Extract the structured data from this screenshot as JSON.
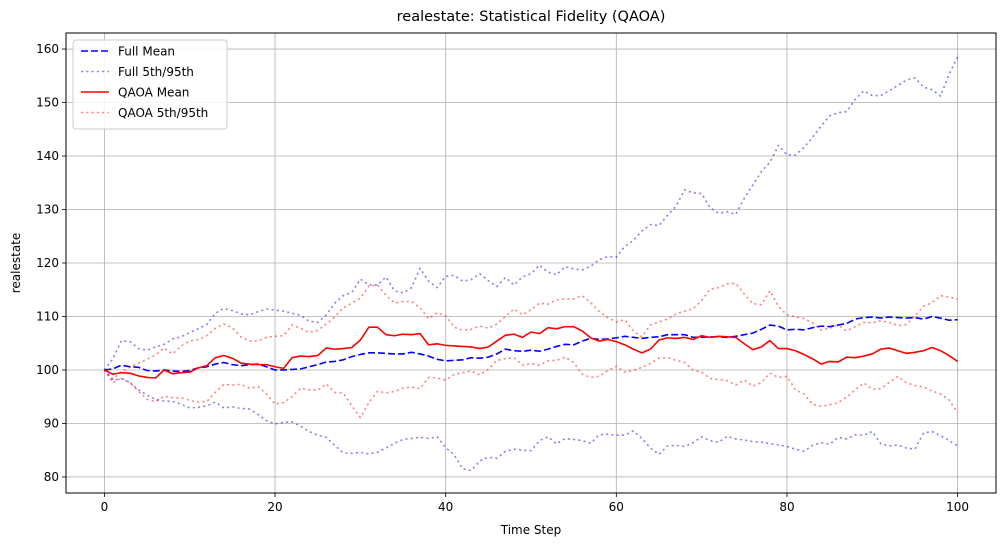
{
  "chart_data": {
    "type": "line",
    "title": "realestate: Statistical Fidelity (QAOA)",
    "xlabel": "Time Step",
    "ylabel": "realestate",
    "xlim": [
      -4.5,
      104.5
    ],
    "ylim": [
      77,
      163
    ],
    "xticks": [
      0,
      20,
      40,
      60,
      80,
      100
    ],
    "yticks": [
      80,
      90,
      100,
      110,
      120,
      130,
      140,
      150,
      160
    ],
    "grid": true,
    "legend_position": "top-left",
    "x": [
      0,
      1,
      2,
      3,
      4,
      5,
      6,
      7,
      8,
      9,
      10,
      11,
      12,
      13,
      14,
      15,
      16,
      17,
      18,
      19,
      20,
      21,
      22,
      23,
      24,
      25,
      26,
      27,
      28,
      29,
      30,
      31,
      32,
      33,
      34,
      35,
      36,
      37,
      38,
      39,
      40,
      41,
      42,
      43,
      44,
      45,
      46,
      47,
      48,
      49,
      50,
      51,
      52,
      53,
      54,
      55,
      56,
      57,
      58,
      59,
      60,
      61,
      62,
      63,
      64,
      65,
      66,
      67,
      68,
      69,
      70,
      71,
      72,
      73,
      74,
      75,
      76,
      77,
      78,
      79,
      80,
      81,
      82,
      83,
      84,
      85,
      86,
      87,
      88,
      89,
      90,
      91,
      92,
      93,
      94,
      95,
      96,
      97,
      98,
      99,
      100
    ],
    "series": [
      {
        "name": "Full Mean",
        "color": "#0000ff",
        "style": "dashed",
        "values": [
          100.0,
          100.2,
          100.9,
          100.6,
          100.5,
          99.9,
          99.8,
          100.0,
          99.8,
          99.7,
          99.9,
          100.4,
          100.6,
          101.1,
          101.4,
          101.0,
          100.8,
          101.0,
          101.1,
          100.6,
          100.0,
          100.0,
          100.1,
          100.2,
          100.6,
          101.0,
          101.5,
          101.6,
          101.9,
          102.5,
          102.9,
          103.2,
          103.2,
          103.1,
          103.0,
          103.0,
          103.3,
          103.0,
          102.6,
          102.0,
          101.7,
          101.8,
          101.9,
          102.3,
          102.2,
          102.4,
          103.0,
          103.9,
          103.6,
          103.5,
          103.7,
          103.5,
          103.9,
          104.4,
          104.8,
          104.7,
          105.4,
          105.9,
          105.7,
          105.8,
          106.0,
          106.3,
          106.1,
          105.9,
          106.1,
          106.2,
          106.6,
          106.6,
          106.6,
          106.1,
          106.1,
          106.2,
          106.2,
          106.1,
          106.3,
          106.6,
          106.9,
          107.6,
          108.4,
          108.2,
          107.5,
          107.6,
          107.5,
          107.9,
          108.2,
          108.1,
          108.4,
          108.7,
          109.5,
          109.8,
          109.9,
          109.7,
          109.9,
          109.8,
          109.7,
          109.8,
          109.5,
          110.0,
          109.7,
          109.3,
          109.4
        ]
      },
      {
        "name": "Full 5th/95th",
        "color": "#0000ff",
        "style": "dotted",
        "values": [
          100.0,
          102.1,
          105.5,
          105.3,
          104.0,
          103.7,
          104.3,
          104.8,
          105.8,
          106.2,
          107.0,
          107.7,
          108.5,
          110.6,
          111.5,
          111.1,
          110.5,
          110.3,
          110.9,
          111.4,
          111.2,
          111.0,
          110.6,
          110.2,
          109.1,
          108.9,
          110.3,
          112.5,
          113.9,
          114.5,
          117.0,
          115.9,
          115.9,
          117.4,
          114.8,
          114.4,
          115.4,
          119.0,
          116.6,
          115.4,
          117.5,
          117.7,
          116.6,
          116.9,
          118.0,
          116.7,
          115.6,
          117.3,
          115.9,
          117.4,
          118.0,
          119.6,
          118.3,
          117.8,
          119.3,
          118.9,
          118.7,
          119.4,
          120.6,
          121.2,
          121.1,
          123.1,
          124.2,
          126.0,
          127.2,
          127.0,
          128.9,
          130.6,
          133.7,
          133.1,
          133.0,
          130.3,
          129.3,
          129.6,
          129.1,
          132.1,
          134.6,
          137.1,
          138.8,
          142.0,
          140.2,
          140.2,
          141.6,
          143.5,
          145.6,
          147.5,
          148.1,
          148.3,
          150.6,
          152.2,
          151.3,
          151.3,
          152.2,
          153.2,
          154.2,
          154.6,
          152.9,
          152.4,
          151.2,
          155.3,
          158.5
        ]
      },
      {
        "name": "",
        "color": "#0000ff",
        "style": "dotted",
        "values": [
          100.0,
          98.1,
          98.4,
          97.6,
          96.3,
          95.3,
          94.5,
          94.2,
          94.1,
          93.6,
          92.9,
          93.0,
          93.3,
          94.0,
          92.9,
          93.1,
          92.8,
          92.7,
          91.7,
          90.5,
          89.9,
          90.2,
          90.3,
          89.5,
          88.5,
          87.8,
          87.4,
          85.9,
          84.5,
          84.4,
          84.6,
          84.3,
          84.6,
          85.4,
          86.3,
          87.0,
          87.2,
          87.4,
          87.2,
          87.5,
          85.5,
          84.1,
          81.5,
          81.2,
          83.0,
          83.7,
          83.5,
          84.8,
          85.2,
          85.0,
          84.9,
          86.8,
          87.5,
          86.2,
          87.2,
          87.0,
          86.8,
          86.3,
          87.9,
          88.0,
          87.8,
          87.8,
          88.6,
          87.2,
          85.4,
          84.2,
          85.8,
          85.9,
          85.7,
          86.4,
          87.5,
          86.8,
          86.5,
          87.6,
          87.1,
          86.9,
          86.6,
          86.5,
          86.2,
          86.0,
          85.7,
          85.2,
          84.8,
          85.9,
          86.4,
          86.1,
          87.4,
          87.1,
          87.9,
          87.8,
          88.5,
          86.2,
          85.8,
          86.0,
          85.4,
          85.2,
          88.2,
          88.5,
          87.7,
          86.8,
          85.8
        ]
      },
      {
        "name": "QAOA Mean",
        "color": "#ff0000",
        "style": "solid",
        "values": [
          100.0,
          99.2,
          99.5,
          99.4,
          98.9,
          98.6,
          98.5,
          100.0,
          99.3,
          99.5,
          99.6,
          100.4,
          100.8,
          102.3,
          102.7,
          102.2,
          101.3,
          101.1,
          101.0,
          101.0,
          100.6,
          100.3,
          102.3,
          102.6,
          102.5,
          102.7,
          104.1,
          103.9,
          104.0,
          104.2,
          105.6,
          108.0,
          108.0,
          106.6,
          106.4,
          106.7,
          106.6,
          106.8,
          104.7,
          104.9,
          104.6,
          104.5,
          104.4,
          104.3,
          104.0,
          104.3,
          105.4,
          106.5,
          106.7,
          106.1,
          107.1,
          106.8,
          107.9,
          107.7,
          108.1,
          108.1,
          107.3,
          106.0,
          105.4,
          105.7,
          105.3,
          104.7,
          103.9,
          103.2,
          103.9,
          105.6,
          106.0,
          105.9,
          106.1,
          105.7,
          106.4,
          106.1,
          106.3,
          106.2,
          106.1,
          104.9,
          103.8,
          104.3,
          105.5,
          104.0,
          104.0,
          103.6,
          102.9,
          102.1,
          101.1,
          101.6,
          101.5,
          102.4,
          102.3,
          102.6,
          103.0,
          103.9,
          104.1,
          103.6,
          103.1,
          103.3,
          103.6,
          104.2,
          103.6,
          102.7,
          101.6
        ]
      },
      {
        "name": "QAOA 5th/95th",
        "color": "#ff0000",
        "style": "dotted",
        "values": [
          100.0,
          98.3,
          99.7,
          100.5,
          101.3,
          102.0,
          102.8,
          104.1,
          103.0,
          104.5,
          105.4,
          105.7,
          106.4,
          107.8,
          108.6,
          107.9,
          106.2,
          105.4,
          105.4,
          106.1,
          106.3,
          106.4,
          108.4,
          107.8,
          107.0,
          107.4,
          108.6,
          109.9,
          111.6,
          112.5,
          113.4,
          115.7,
          115.9,
          114.0,
          112.5,
          112.8,
          112.8,
          111.6,
          109.6,
          110.7,
          110.1,
          108.0,
          107.4,
          107.6,
          108.2,
          107.8,
          108.6,
          110.0,
          111.4,
          110.3,
          111.3,
          112.5,
          112.3,
          113.1,
          113.3,
          113.3,
          113.9,
          112.6,
          110.9,
          109.8,
          109.0,
          109.4,
          107.3,
          106.2,
          108.4,
          109.0,
          109.5,
          110.5,
          111.0,
          111.4,
          113.0,
          115.1,
          115.4,
          116.1,
          116.2,
          114.2,
          112.4,
          112.2,
          114.8,
          111.9,
          110.3,
          109.9,
          109.6,
          108.8,
          107.5,
          107.8,
          108.4,
          107.3,
          108.1,
          108.9,
          108.8,
          109.2,
          108.9,
          108.3,
          108.5,
          110.1,
          111.9,
          112.6,
          113.9,
          113.6,
          113.3
        ]
      },
      {
        "name": "",
        "color": "#ff0000",
        "style": "dotted",
        "values": [
          100.0,
          97.6,
          98.5,
          97.6,
          96.0,
          94.5,
          94.1,
          95.1,
          94.8,
          94.8,
          94.3,
          94.0,
          94.1,
          95.8,
          97.3,
          97.2,
          97.3,
          96.6,
          96.9,
          95.5,
          93.6,
          93.9,
          95.0,
          96.6,
          96.3,
          96.2,
          97.4,
          95.8,
          95.7,
          93.3,
          91.1,
          93.9,
          96.0,
          95.7,
          96.0,
          96.6,
          96.8,
          96.5,
          98.6,
          98.5,
          98.1,
          99.2,
          99.5,
          99.8,
          99.1,
          100.1,
          101.8,
          102.1,
          102.3,
          100.9,
          101.2,
          100.9,
          101.7,
          101.8,
          102.4,
          101.4,
          99.2,
          98.6,
          98.8,
          99.9,
          100.7,
          99.6,
          99.9,
          100.5,
          101.2,
          102.2,
          102.3,
          101.8,
          101.4,
          100.0,
          99.6,
          98.4,
          98.2,
          98.0,
          97.2,
          98.1,
          97.0,
          97.6,
          99.4,
          98.6,
          98.8,
          96.3,
          95.5,
          93.6,
          93.2,
          93.5,
          93.9,
          94.9,
          96.3,
          97.6,
          96.4,
          96.5,
          97.7,
          98.8,
          97.6,
          97.1,
          96.8,
          96.1,
          95.5,
          94.4,
          92.0
        ]
      }
    ],
    "legend": [
      {
        "label": "Full Mean",
        "color": "#0000ff",
        "style": "dashed"
      },
      {
        "label": "Full 5th/95th",
        "color": "#0000ff",
        "style": "dotted"
      },
      {
        "label": "QAOA Mean",
        "color": "#ff0000",
        "style": "solid"
      },
      {
        "label": "QAOA 5th/95th",
        "color": "#ff0000",
        "style": "dotted"
      }
    ]
  }
}
